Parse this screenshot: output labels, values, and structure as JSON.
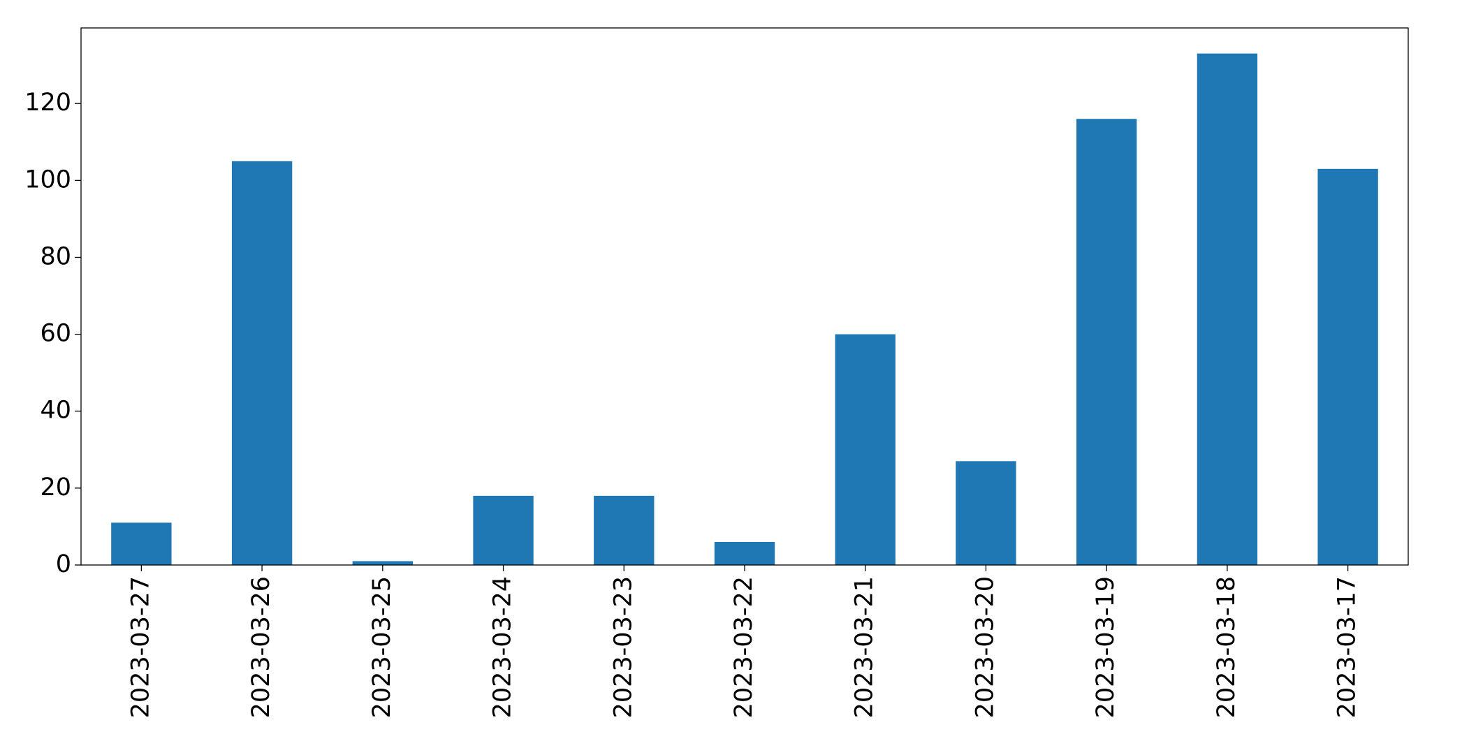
{
  "chart_data": {
    "type": "bar",
    "categories": [
      "2023-03-27",
      "2023-03-26",
      "2023-03-25",
      "2023-03-24",
      "2023-03-23",
      "2023-03-22",
      "2023-03-21",
      "2023-03-20",
      "2023-03-19",
      "2023-03-18",
      "2023-03-17"
    ],
    "values": [
      11,
      105,
      1,
      18,
      18,
      6,
      60,
      27,
      116,
      133,
      103
    ],
    "color": "#1f77b4",
    "ylim": [
      0,
      139.65
    ],
    "yticks": [
      0,
      20,
      40,
      60,
      80,
      100,
      120
    ],
    "grid": false
  }
}
